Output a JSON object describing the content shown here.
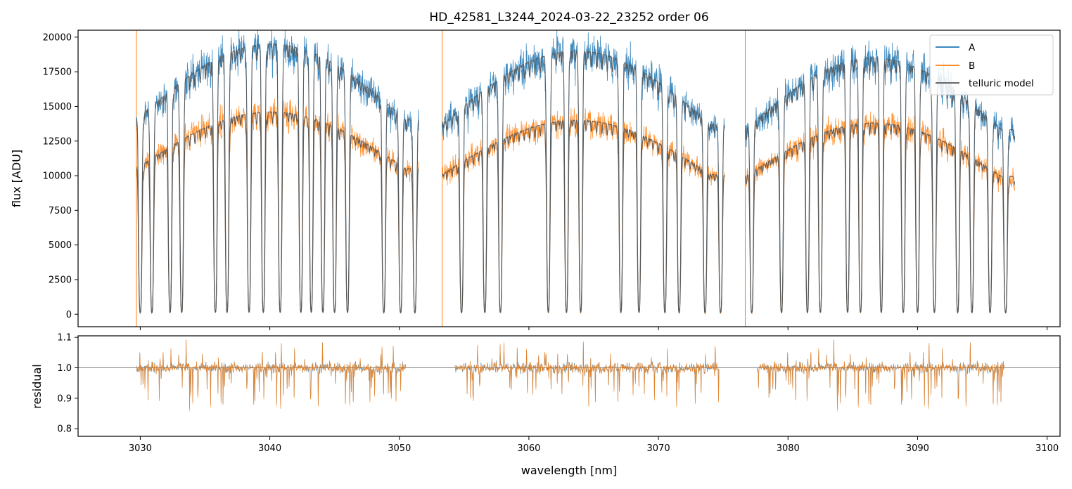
{
  "chart_data": [
    {
      "id": "flux",
      "type": "line",
      "title": "HD_42581_L3244_2024-03-22_23252  order 06",
      "xlabel": "",
      "ylabel": "flux [ADU]",
      "xlim": [
        3025.2,
        3101.0
      ],
      "ylim": [
        -900,
        20500
      ],
      "yticks": [
        0,
        2500,
        5000,
        7500,
        10000,
        12500,
        15000,
        17500,
        20000
      ],
      "yticklabels": [
        "0",
        "2500",
        "5000",
        "7500",
        "10000",
        "12500",
        "15000",
        "17500",
        "20000"
      ],
      "xticks": [
        3030,
        3040,
        3050,
        3060,
        3070,
        3080,
        3090,
        3100
      ],
      "xticklabels_visible": false,
      "legend_position": "top-right",
      "series": [
        {
          "name": "A",
          "color": "#1f77b4"
        },
        {
          "name": "B",
          "color": "#ff7f0e"
        },
        {
          "name": "telluric model",
          "color": "#555555"
        }
      ],
      "segments": [
        {
          "x_start": 3029.7,
          "x_end": 3051.5,
          "continuum_A": 19500,
          "continuum_B": 14600,
          "lines": [
            3030.0,
            3030.9,
            3032.3,
            3033.2,
            3035.8,
            3036.7,
            3038.4,
            3039.5,
            3040.8,
            3042.4,
            3043.2,
            3044.1,
            3045.0,
            3046.0,
            3048.8,
            3050.1,
            3051.2
          ]
        },
        {
          "x_start": 3053.3,
          "x_end": 3075.1,
          "continuum_A": 19000,
          "continuum_B": 14000,
          "lines": [
            3054.8,
            3056.6,
            3057.8,
            3061.5,
            3062.9,
            3064.0,
            3067.1,
            3068.5,
            3070.5,
            3071.6,
            3073.6,
            3074.8
          ]
        },
        {
          "x_start": 3076.7,
          "x_end": 3097.5,
          "continuum_A": 18500,
          "continuum_B": 13800,
          "lines": [
            3077.2,
            3079.5,
            3081.5,
            3082.5,
            3084.6,
            3085.6,
            3087.2,
            3088.9,
            3090.0,
            3091.3,
            3093.1,
            3094.2,
            3095.6,
            3096.8
          ]
        }
      ]
    },
    {
      "id": "residual",
      "type": "line",
      "xlabel": "wavelength [nm]",
      "ylabel": "residual",
      "xlim": [
        3025.2,
        3101.0
      ],
      "ylim": [
        0.775,
        1.105
      ],
      "yticks": [
        0.8,
        0.9,
        1.0,
        1.1
      ],
      "yticklabels": [
        "0.8",
        "0.9",
        "1.0",
        "1.1"
      ],
      "xticks": [
        3030,
        3040,
        3050,
        3060,
        3070,
        3080,
        3090,
        3100
      ],
      "xticklabels": [
        "3030",
        "3040",
        "3050",
        "3060",
        "3070",
        "3080",
        "3090",
        "3100"
      ],
      "reference_line": 1.0,
      "segments": [
        {
          "x_start": 3029.7,
          "x_end": 3050.5
        },
        {
          "x_start": 3054.3,
          "x_end": 3074.7
        },
        {
          "x_start": 3077.6,
          "x_end": 3096.7
        }
      ]
    }
  ]
}
